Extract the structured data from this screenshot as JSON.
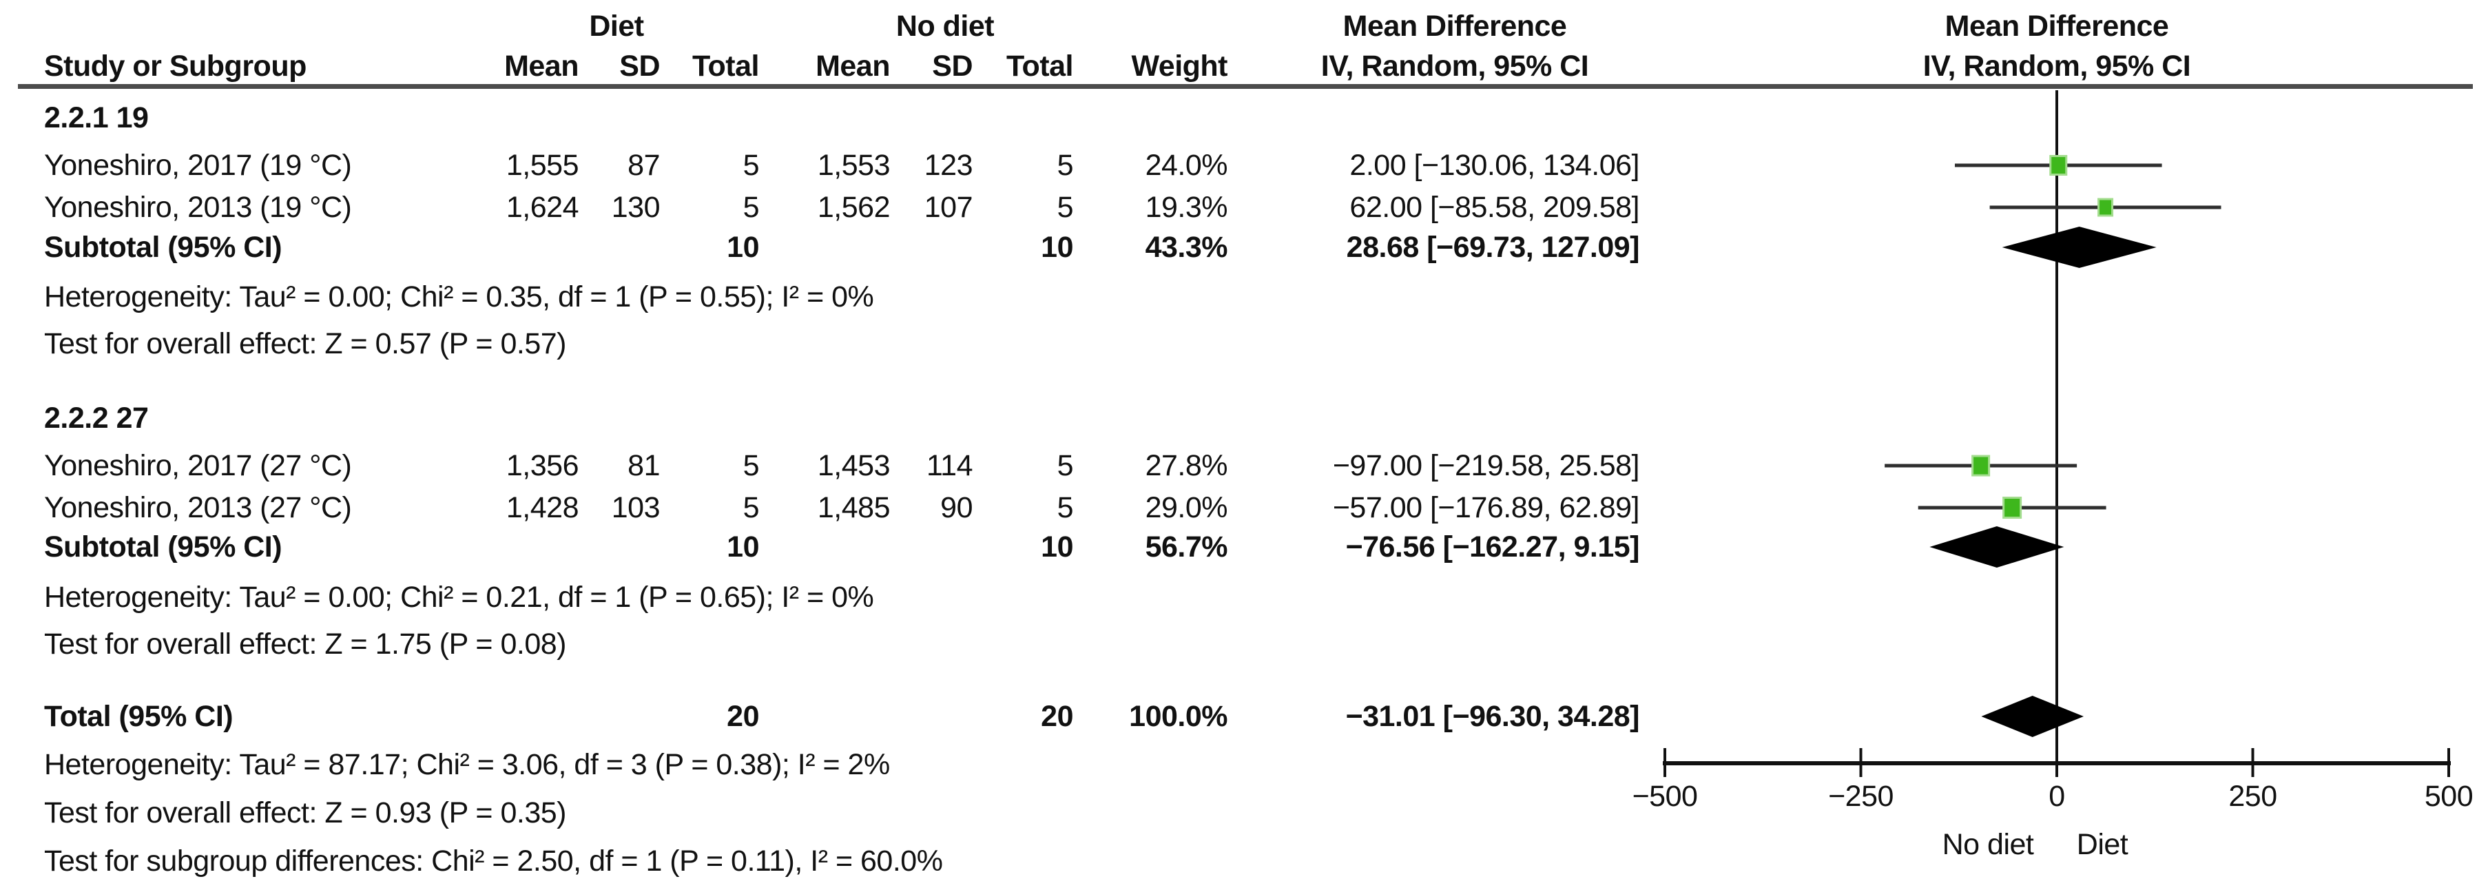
{
  "header": {
    "col_study": "Study or Subgroup",
    "group1": "Diet",
    "group2": "No diet",
    "col_mean": "Mean",
    "col_sd": "SD",
    "col_total": "Total",
    "col_weight": "Weight",
    "md_line1": "Mean Difference",
    "md_line2": "IV, Random, 95% CI"
  },
  "chart_data": {
    "type": "forest",
    "x_axis": {
      "min": -500,
      "max": 500,
      "ticks": [
        -500,
        -250,
        0,
        250,
        500
      ],
      "tick_labels": [
        "−500",
        "−250",
        "0",
        "250",
        "500"
      ],
      "left_label": "No diet",
      "right_label": "Diet",
      "zero_line": 0
    },
    "marker_color": "#3eb71c",
    "marker_halo_color": "#a3dc8e",
    "diamond_color": "#000000",
    "groups": [
      {
        "title": "2.2.1 19",
        "studies": [
          {
            "label": "Yoneshiro, 2017 (19 °C)",
            "mean1": "1,555",
            "sd1": "87",
            "total1": "5",
            "mean2": "1,553",
            "sd2": "123",
            "total2": "5",
            "weight": "24.0%",
            "weight_pct": 24.0,
            "ci_text": "2.00 [−130.06, 134.06]",
            "md": 2.0,
            "lo": -130.06,
            "hi": 134.06
          },
          {
            "label": "Yoneshiro, 2013 (19 °C)",
            "mean1": "1,624",
            "sd1": "130",
            "total1": "5",
            "mean2": "1,562",
            "sd2": "107",
            "total2": "5",
            "weight": "19.3%",
            "weight_pct": 19.3,
            "ci_text": "62.00 [−85.58, 209.58]",
            "md": 62.0,
            "lo": -85.58,
            "hi": 209.58
          }
        ],
        "subtotal": {
          "label": "Subtotal (95% CI)",
          "total1": "10",
          "total2": "10",
          "weight": "43.3%",
          "ci_text": "28.68 [−69.73, 127.09]",
          "md": 28.68,
          "lo": -69.73,
          "hi": 127.09
        },
        "heterogeneity": "Heterogeneity: Tau² = 0.00; Chi² = 0.35, df = 1 (P = 0.55); I² = 0%",
        "overall_effect": "Test for overall effect: Z = 0.57 (P = 0.57)"
      },
      {
        "title": "2.2.2 27",
        "studies": [
          {
            "label": "Yoneshiro, 2017 (27 °C)",
            "mean1": "1,356",
            "sd1": "81",
            "total1": "5",
            "mean2": "1,453",
            "sd2": "114",
            "total2": "5",
            "weight": "27.8%",
            "weight_pct": 27.8,
            "ci_text": "−97.00 [−219.58, 25.58]",
            "md": -97.0,
            "lo": -219.58,
            "hi": 25.58
          },
          {
            "label": "Yoneshiro, 2013 (27 °C)",
            "mean1": "1,428",
            "sd1": "103",
            "total1": "5",
            "mean2": "1,485",
            "sd2": "90",
            "total2": "5",
            "weight": "29.0%",
            "weight_pct": 29.0,
            "ci_text": "−57.00 [−176.89, 62.89]",
            "md": -57.0,
            "lo": -176.89,
            "hi": 62.89
          }
        ],
        "subtotal": {
          "label": "Subtotal (95% CI)",
          "total1": "10",
          "total2": "10",
          "weight": "56.7%",
          "ci_text": "−76.56 [−162.27, 9.15]",
          "md": -76.56,
          "lo": -162.27,
          "hi": 9.15
        },
        "heterogeneity": "Heterogeneity: Tau² = 0.00; Chi² = 0.21, df = 1 (P = 0.65); I² = 0%",
        "overall_effect": "Test for overall effect: Z = 1.75 (P = 0.08)"
      }
    ],
    "total": {
      "label": "Total (95% CI)",
      "total1": "20",
      "total2": "20",
      "weight": "100.0%",
      "ci_text": "−31.01 [−96.30, 34.28]",
      "md": -31.01,
      "lo": -96.3,
      "hi": 34.28
    },
    "total_heterogeneity": "Heterogeneity: Tau² = 87.17; Chi² = 3.06, df = 3 (P = 0.38); I² = 2%",
    "total_overall_effect": "Test for overall effect: Z = 0.93 (P = 0.35)",
    "subgroup_difference": "Test for subgroup differences: Chi² = 2.50, df = 1 (P = 0.11), I² = 60.0%"
  }
}
